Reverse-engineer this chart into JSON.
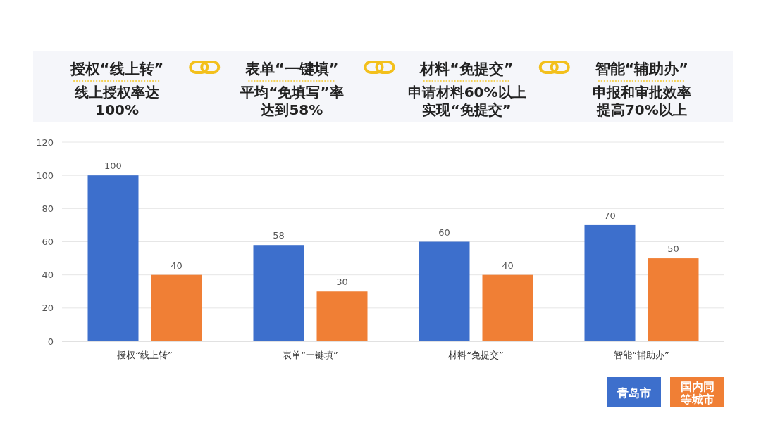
{
  "chart_data": {
    "type": "bar",
    "categories": [
      "授权“线上转”",
      "表单“一键填”",
      "材料“免提交”",
      "智能“辅助办”"
    ],
    "series": [
      {
        "name": "青岛市",
        "color": "#3d6fcc",
        "values": [
          100,
          58,
          60,
          70
        ]
      },
      {
        "name": "国内同等城市",
        "color": "#f07f35",
        "values": [
          40,
          30,
          40,
          50
        ]
      }
    ],
    "ylim": [
      0,
      120
    ],
    "yticks": [
      0,
      20,
      40,
      60,
      80,
      100,
      120
    ],
    "grid": "y",
    "data_labels": true,
    "legend": "bottom right",
    "annotations": [
      "授权“线上转”",
      "线上授权率达",
      "100%",
      "表单“一键填”",
      "平均“免填写”率",
      "达到58%",
      "材料“免提交”",
      "申请材料60%以上",
      "实现“免提交”",
      "智能“辅助办”",
      "申报和审批效率",
      "提高70%以上"
    ]
  }
}
